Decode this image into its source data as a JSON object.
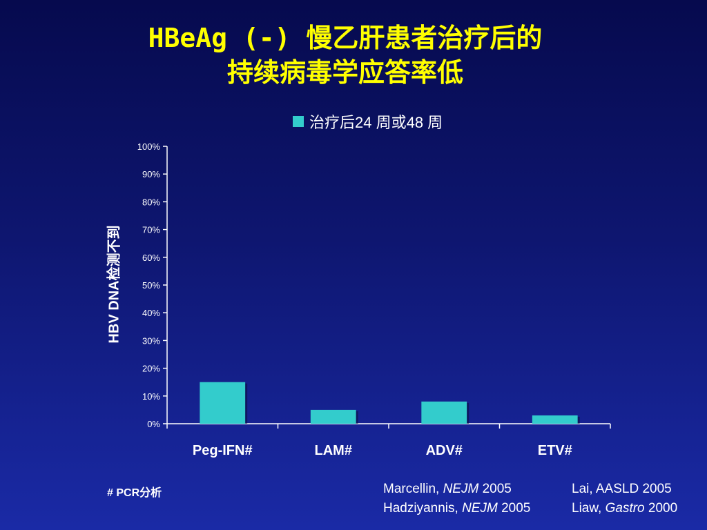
{
  "title": {
    "line1": "HBeAg (-) 慢乙肝患者治疗后的",
    "line2": "持续病毒学应答率低"
  },
  "colors": {
    "title": "#ffff00",
    "bar": "#33cccc",
    "background": "#0e1670"
  },
  "chart_data": {
    "type": "bar",
    "categories": [
      "Peg-IFN#",
      "LAM#",
      "ADV#",
      "ETV#"
    ],
    "series": [
      {
        "name": "治疗后24 周或48 周",
        "values": [
          15,
          5,
          8,
          3
        ]
      }
    ],
    "ylabel": "HBV DNA检测不到",
    "ylim": [
      0,
      100
    ],
    "yticks": [
      "0%",
      "10%",
      "20%",
      "30%",
      "40%",
      "50%",
      "60%",
      "70%",
      "80%",
      "90%",
      "100%"
    ],
    "grid": false,
    "legend_position": "top"
  },
  "footnote": "# PCR分析",
  "references": [
    {
      "author": "Marcellin, ",
      "journal": "NEJM",
      "year": " 2005"
    },
    {
      "author": "Hadziyannis, ",
      "journal": "NEJM",
      "year": " 2005"
    },
    {
      "author": "Lai, AASLD 2005",
      "journal": "",
      "year": ""
    },
    {
      "author": "Liaw, ",
      "journal": "Gastro",
      "year": " 2000"
    }
  ]
}
